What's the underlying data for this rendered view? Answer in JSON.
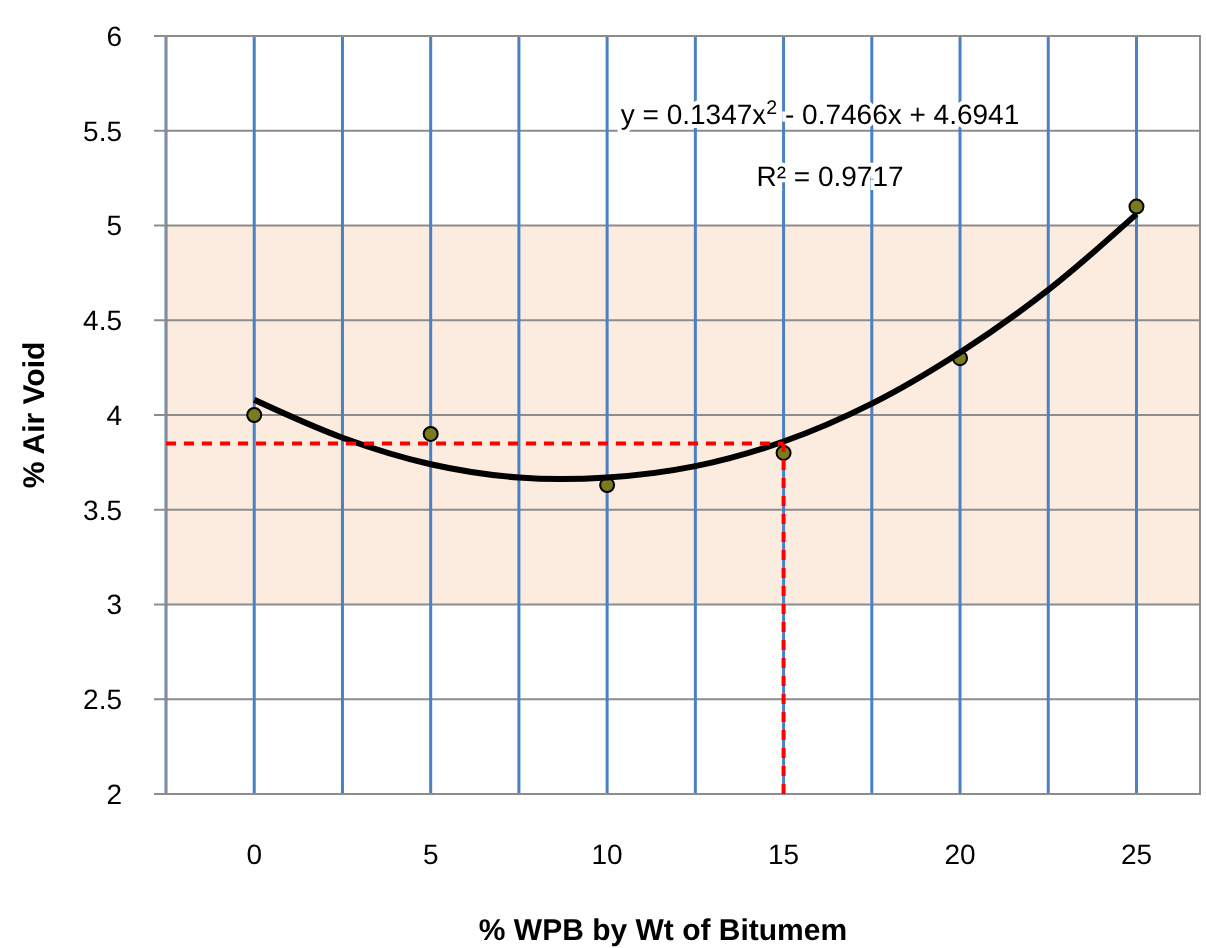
{
  "chart_data": {
    "type": "scatter",
    "xlabel": "%  WPB by Wt of Bitumem",
    "ylabel": "% Air Void",
    "x": [
      0,
      5,
      10,
      15,
      20,
      25
    ],
    "series": [
      {
        "type": "scatter",
        "color": "#7a7a1e",
        "values": [
          4.0,
          3.9,
          3.63,
          3.8,
          4.3,
          5.1
        ],
        "marker": "circle"
      },
      {
        "type": "line",
        "color": "#000000",
        "marker": "none",
        "x": [
          0,
          2.5,
          5,
          7.5,
          10,
          12.5,
          15,
          17.5,
          20,
          22.5,
          25
        ],
        "values": [
          4.08,
          3.88,
          3.74,
          3.67,
          3.67,
          3.73,
          3.86,
          4.06,
          4.33,
          4.66,
          5.06
        ]
      }
    ],
    "xlim": [
      -2.5,
      26.8
    ],
    "ylim": [
      2,
      6
    ],
    "xticks": [
      {
        "value": -2.5,
        "label": null
      },
      0,
      {
        "value": 2.5,
        "label": null
      },
      5,
      {
        "value": 7.5,
        "label": null
      },
      10,
      {
        "value": 12.5,
        "label": null
      },
      15,
      {
        "value": 17.5,
        "label": null
      },
      20,
      {
        "value": 22.5,
        "label": null
      },
      25
    ],
    "yticks": [
      2,
      2.5,
      3,
      3.5,
      4,
      4.5,
      5,
      5.5,
      6
    ],
    "grid": true,
    "bands": [
      {
        "axis": "y",
        "from": 3,
        "to": 5,
        "color": "#fcebdf"
      }
    ],
    "ref_lines": [
      {
        "axis": "y",
        "value": 3.85,
        "color": "#ff0000",
        "line_style": "dashed"
      },
      {
        "axis": "x",
        "value": 15,
        "color": "#ff0000",
        "line_style": "dashed"
      }
    ],
    "annotations": [
      "y = 0.1347x$^{2}$ - 0.7466x + 4.6941",
      "R² = 0.9717"
    ]
  }
}
